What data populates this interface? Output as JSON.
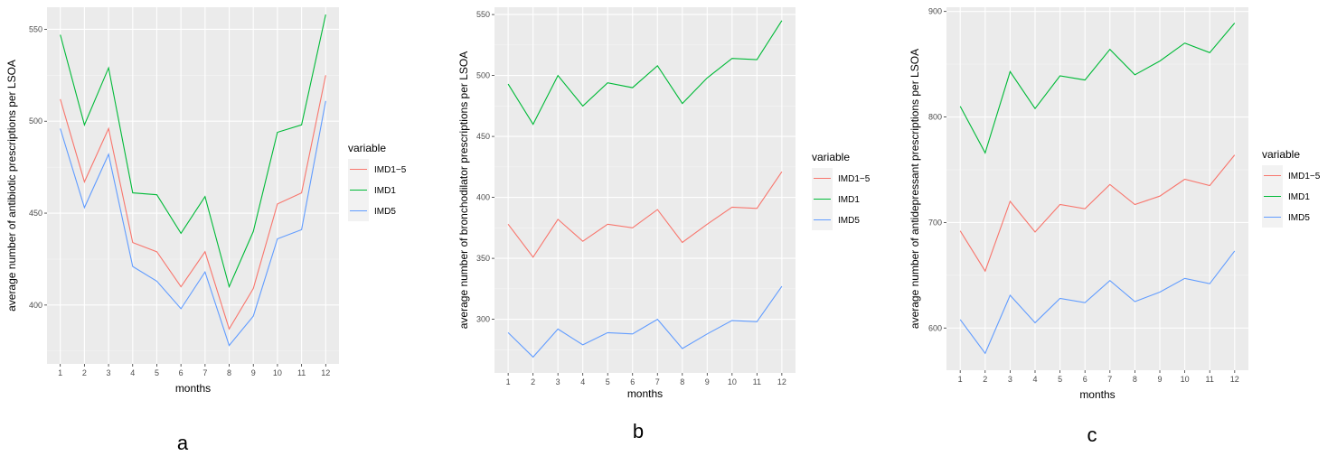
{
  "chart_data": [
    {
      "type": "line",
      "panel_label": "a",
      "xlabel": "months",
      "ylabel": "average number of antibiotic prescriptions per LSOA",
      "x": [
        1,
        2,
        3,
        4,
        5,
        6,
        7,
        8,
        9,
        10,
        11,
        12
      ],
      "ylim": [
        368,
        562
      ],
      "yticks": [
        400,
        450,
        500,
        550
      ],
      "legend_title": "variable",
      "legend_position": "right",
      "grid": true,
      "series": [
        {
          "name": "IMD1−5",
          "color": "#F8766D",
          "values": [
            512,
            467,
            496,
            434,
            429,
            410,
            429,
            387,
            409,
            455,
            461,
            525
          ]
        },
        {
          "name": "IMD1",
          "color": "#00BA38",
          "values": [
            547,
            498,
            529,
            461,
            460,
            439,
            459,
            410,
            440,
            494,
            498,
            558
          ]
        },
        {
          "name": "IMD5",
          "color": "#619CFF",
          "values": [
            496,
            453,
            482,
            421,
            413,
            398,
            418,
            378,
            394,
            436,
            441,
            511
          ]
        }
      ]
    },
    {
      "type": "line",
      "panel_label": "b",
      "xlabel": "months",
      "ylabel": "average number of bronchodilator prescriptions per LSOA",
      "x": [
        1,
        2,
        3,
        4,
        5,
        6,
        7,
        8,
        9,
        10,
        11,
        12
      ],
      "ylim": [
        256,
        556
      ],
      "yticks": [
        300,
        350,
        400,
        450,
        500,
        550
      ],
      "legend_title": "variable",
      "legend_position": "right",
      "grid": true,
      "series": [
        {
          "name": "IMD1−5",
          "color": "#F8766D",
          "values": [
            378,
            351,
            382,
            364,
            378,
            375,
            390,
            363,
            378,
            392,
            391,
            421
          ]
        },
        {
          "name": "IMD1",
          "color": "#00BA38",
          "values": [
            493,
            460,
            500,
            475,
            494,
            490,
            508,
            477,
            498,
            514,
            513,
            545
          ]
        },
        {
          "name": "IMD5",
          "color": "#619CFF",
          "values": [
            289,
            269,
            292,
            279,
            289,
            288,
            300,
            276,
            288,
            299,
            298,
            327
          ]
        }
      ]
    },
    {
      "type": "line",
      "panel_label": "c",
      "xlabel": "months",
      "ylabel": "average number of antidepressant prescriptions per LSOA",
      "x": [
        1,
        2,
        3,
        4,
        5,
        6,
        7,
        8,
        9,
        10,
        11,
        12
      ],
      "ylim": [
        560,
        904
      ],
      "yticks": [
        600,
        700,
        800,
        900
      ],
      "legend_title": "variable",
      "legend_position": "right",
      "grid": true,
      "series": [
        {
          "name": "IMD1−5",
          "color": "#F8766D",
          "values": [
            692,
            654,
            720,
            691,
            717,
            713,
            736,
            717,
            725,
            741,
            735,
            764
          ]
        },
        {
          "name": "IMD1",
          "color": "#00BA38",
          "values": [
            810,
            766,
            843,
            808,
            839,
            835,
            864,
            840,
            853,
            870,
            861,
            889
          ]
        },
        {
          "name": "IMD5",
          "color": "#619CFF",
          "values": [
            608,
            576,
            631,
            605,
            628,
            624,
            645,
            625,
            634,
            647,
            642,
            673
          ]
        }
      ]
    }
  ]
}
